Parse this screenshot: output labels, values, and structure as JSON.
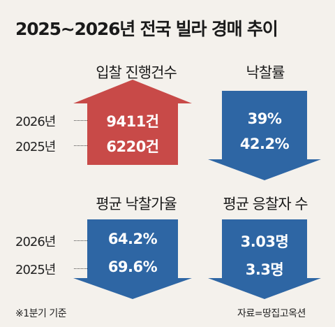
{
  "title": "2025~2026년 전국 빌라 경매 추이",
  "colors": {
    "up": "#c84a48",
    "down": "#2e66a4",
    "background": "#f4f1ec"
  },
  "chart_data": [
    {
      "type": "bar",
      "title": "입찰 진행건수",
      "direction": "up",
      "categories": [
        "2026년",
        "2025년"
      ],
      "values": [
        9411,
        6220
      ],
      "labels": [
        "9411건",
        "6220건"
      ]
    },
    {
      "type": "bar",
      "title": "낙찰률",
      "direction": "down",
      "categories": [
        "2026년",
        "2025년"
      ],
      "values": [
        39,
        42.2
      ],
      "labels": [
        "39%",
        "42.2%"
      ]
    },
    {
      "type": "bar",
      "title": "평균 낙찰가율",
      "direction": "down",
      "categories": [
        "2026년",
        "2025년"
      ],
      "values": [
        64.2,
        69.6
      ],
      "labels": [
        "64.2%",
        "69.6%"
      ]
    },
    {
      "type": "bar",
      "title": "평균 응찰자 수",
      "direction": "down",
      "categories": [
        "2026년",
        "2025년"
      ],
      "values": [
        3.03,
        3.3
      ],
      "labels": [
        "3.03명",
        "3.3명"
      ]
    }
  ],
  "footnote": "※1분기 기준",
  "source": "자료=땅집고옥션"
}
